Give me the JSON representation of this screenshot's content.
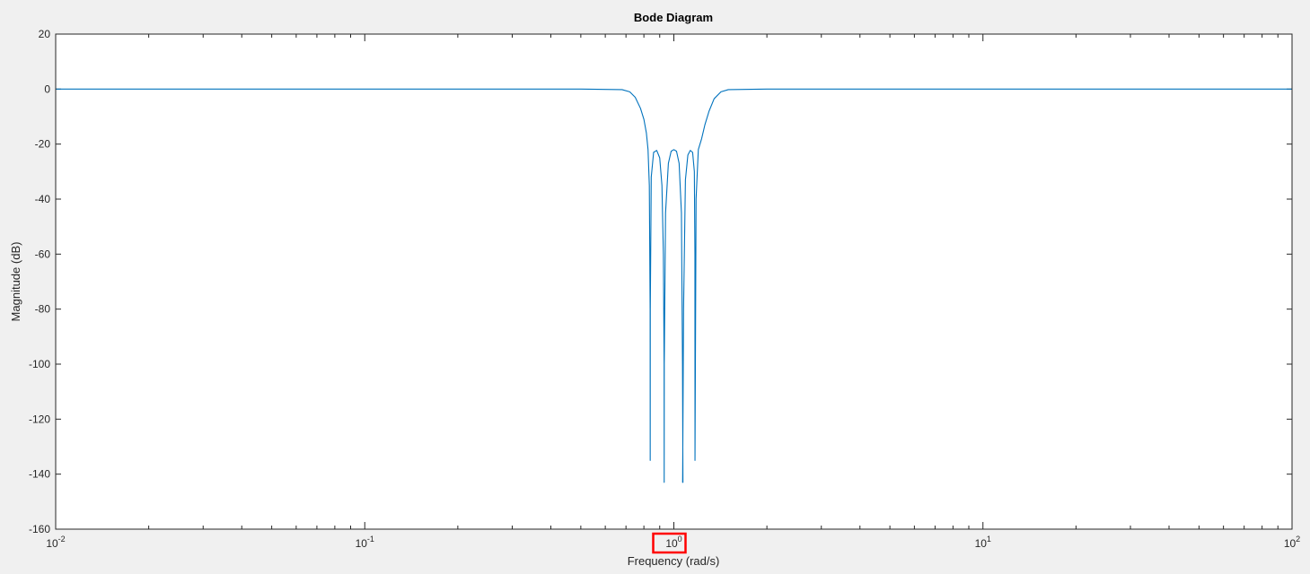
{
  "chart_data": {
    "type": "line",
    "title": "Bode Diagram",
    "xlabel": "Frequency  (rad/s)",
    "ylabel": "Magnitude (dB)",
    "xscale": "log",
    "xlim": [
      0.01,
      100
    ],
    "ylim": [
      -160,
      20
    ],
    "grid": false,
    "xticks": [
      {
        "value": 0.01,
        "base": "10",
        "exp": "-2"
      },
      {
        "value": 0.1,
        "base": "10",
        "exp": "-1"
      },
      {
        "value": 1,
        "base": "10",
        "exp": "0"
      },
      {
        "value": 10,
        "base": "10",
        "exp": "1"
      },
      {
        "value": 100,
        "base": "10",
        "exp": "2"
      }
    ],
    "yticks": [
      20,
      0,
      -20,
      -40,
      -60,
      -80,
      -100,
      -120,
      -140,
      -160
    ],
    "highlight": {
      "tick_value": 1,
      "color": "#ff0000"
    },
    "series": [
      {
        "color": "#0072bd",
        "x": [
          0.01,
          0.1,
          0.5,
          0.68,
          0.72,
          0.75,
          0.78,
          0.8,
          0.815,
          0.825,
          0.833,
          0.838,
          0.8385,
          0.839,
          0.845,
          0.86,
          0.88,
          0.9,
          0.915,
          0.925,
          0.93,
          0.9305,
          0.931,
          0.94,
          0.96,
          0.98,
          1.0,
          1.02,
          1.04,
          1.058,
          1.0665,
          1.07,
          1.0675,
          1.075,
          1.09,
          1.11,
          1.13,
          1.15,
          1.165,
          1.17,
          1.1705,
          1.18,
          1.2,
          1.23,
          1.26,
          1.3,
          1.35,
          1.42,
          1.5,
          2,
          10,
          100
        ],
        "y": [
          0,
          0,
          0,
          -0.2,
          -1,
          -3,
          -7,
          -11,
          -16,
          -22,
          -35,
          -80,
          -135,
          -80,
          -32,
          -23,
          -22.3,
          -25,
          -35,
          -60,
          -100,
          -143,
          -100,
          -45,
          -27,
          -22.6,
          -22,
          -22.6,
          -27,
          -45,
          -100,
          -143,
          -143,
          -80,
          -33,
          -24,
          -22.3,
          -23,
          -30,
          -60,
          -135,
          -40,
          -22,
          -18,
          -13,
          -8,
          -3.5,
          -1,
          -0.2,
          0,
          0,
          0
        ]
      }
    ]
  }
}
